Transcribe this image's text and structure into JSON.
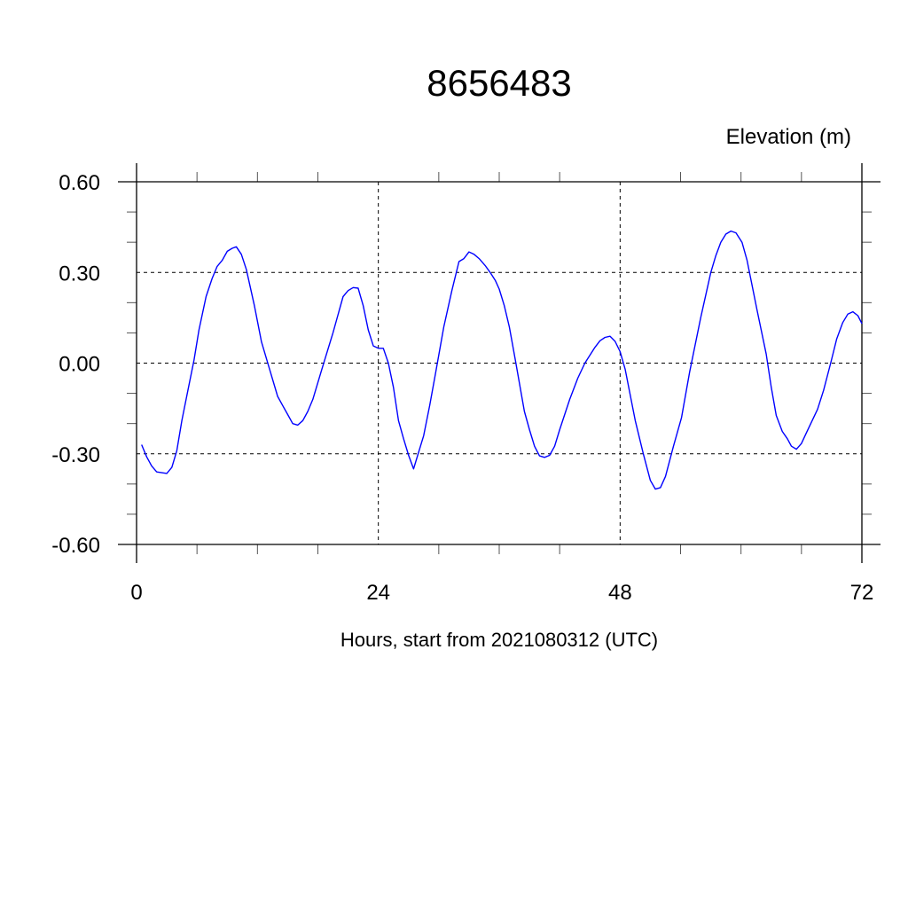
{
  "chart_data": {
    "type": "line",
    "title": "8656483",
    "ylabel": "Elevation (m)",
    "xlabel": "Hours, start from 2021080312 (UTC)",
    "xlim": [
      0,
      72
    ],
    "ylim": [
      -0.6,
      0.6
    ],
    "x_ticks": [
      0,
      24,
      48,
      72
    ],
    "x_tick_labels": [
      "0",
      "24",
      "48",
      "72"
    ],
    "x_minor_step": 6,
    "y_ticks": [
      -0.6,
      -0.3,
      0.0,
      0.3,
      0.6
    ],
    "y_tick_labels": [
      "-0.60",
      "-0.30",
      "0.00",
      "0.30",
      "0.60"
    ],
    "y_minor_step": 0.1,
    "grid": true,
    "line_color": "#0000ff",
    "series": [
      {
        "points": [
          [
            0.5,
            -0.27
          ],
          [
            1.0,
            -0.31
          ],
          [
            1.5,
            -0.34
          ],
          [
            2.0,
            -0.36
          ],
          [
            3.0,
            -0.365
          ],
          [
            3.5,
            -0.345
          ],
          [
            4.0,
            -0.29
          ],
          [
            4.5,
            -0.19
          ],
          [
            5.1,
            -0.09
          ],
          [
            5.7,
            0.01
          ],
          [
            6.2,
            0.11
          ],
          [
            6.9,
            0.22
          ],
          [
            7.5,
            0.28
          ],
          [
            8.0,
            0.32
          ],
          [
            8.5,
            0.34
          ],
          [
            9.0,
            0.37
          ],
          [
            9.5,
            0.38
          ],
          [
            9.9,
            0.385
          ],
          [
            10.4,
            0.36
          ],
          [
            10.9,
            0.31
          ],
          [
            11.7,
            0.19
          ],
          [
            12.4,
            0.07
          ],
          [
            13.2,
            -0.02
          ],
          [
            14.0,
            -0.11
          ],
          [
            14.5,
            -0.14
          ],
          [
            15.0,
            -0.17
          ],
          [
            15.5,
            -0.2
          ],
          [
            16.0,
            -0.205
          ],
          [
            16.5,
            -0.19
          ],
          [
            17.0,
            -0.16
          ],
          [
            17.5,
            -0.12
          ],
          [
            18.4,
            -0.02
          ],
          [
            19.5,
            0.1
          ],
          [
            20.5,
            0.22
          ],
          [
            21.0,
            0.24
          ],
          [
            21.5,
            0.25
          ],
          [
            22.0,
            0.248
          ],
          [
            22.5,
            0.19
          ],
          [
            23.0,
            0.11
          ],
          [
            23.5,
            0.057
          ],
          [
            24.0,
            0.049
          ],
          [
            24.5,
            0.049
          ],
          [
            25.0,
            0.0
          ],
          [
            25.5,
            -0.08
          ],
          [
            26.0,
            -0.19
          ],
          [
            26.5,
            -0.25
          ],
          [
            27.0,
            -0.305
          ],
          [
            27.5,
            -0.35
          ],
          [
            28.0,
            -0.295
          ],
          [
            28.5,
            -0.24
          ],
          [
            29.1,
            -0.14
          ],
          [
            29.7,
            -0.03
          ],
          [
            30.5,
            0.12
          ],
          [
            31.3,
            0.24
          ],
          [
            32.0,
            0.336
          ],
          [
            32.5,
            0.346
          ],
          [
            33.0,
            0.368
          ],
          [
            33.5,
            0.36
          ],
          [
            34.0,
            0.346
          ],
          [
            34.6,
            0.323
          ],
          [
            35.1,
            0.3
          ],
          [
            35.6,
            0.274
          ],
          [
            36.0,
            0.245
          ],
          [
            36.5,
            0.19
          ],
          [
            37.0,
            0.12
          ],
          [
            37.6,
            0.01
          ],
          [
            38.5,
            -0.16
          ],
          [
            39.0,
            -0.22
          ],
          [
            39.5,
            -0.275
          ],
          [
            40.0,
            -0.307
          ],
          [
            40.5,
            -0.312
          ],
          [
            41.0,
            -0.305
          ],
          [
            41.5,
            -0.275
          ],
          [
            42.0,
            -0.22
          ],
          [
            43.0,
            -0.12
          ],
          [
            43.8,
            -0.05
          ],
          [
            44.5,
            0.0
          ],
          [
            45.5,
            0.052
          ],
          [
            46.0,
            0.074
          ],
          [
            46.5,
            0.085
          ],
          [
            47.0,
            0.089
          ],
          [
            47.5,
            0.072
          ],
          [
            48.0,
            0.038
          ],
          [
            48.5,
            -0.02
          ],
          [
            49.5,
            -0.19
          ],
          [
            50.3,
            -0.3
          ],
          [
            51.0,
            -0.388
          ],
          [
            51.5,
            -0.417
          ],
          [
            52.0,
            -0.412
          ],
          [
            52.5,
            -0.375
          ],
          [
            53.3,
            -0.275
          ],
          [
            54.1,
            -0.18
          ],
          [
            54.9,
            -0.03
          ],
          [
            56.0,
            0.15
          ],
          [
            57.0,
            0.3
          ],
          [
            57.5,
            0.356
          ],
          [
            58.0,
            0.4
          ],
          [
            58.5,
            0.427
          ],
          [
            59.0,
            0.437
          ],
          [
            59.5,
            0.431
          ],
          [
            60.1,
            0.4
          ],
          [
            60.6,
            0.34
          ],
          [
            61.6,
            0.175
          ],
          [
            62.5,
            0.03
          ],
          [
            63.0,
            -0.08
          ],
          [
            63.5,
            -0.173
          ],
          [
            64.1,
            -0.226
          ],
          [
            64.6,
            -0.25
          ],
          [
            65.0,
            -0.275
          ],
          [
            65.5,
            -0.285
          ],
          [
            66.0,
            -0.266
          ],
          [
            66.5,
            -0.23
          ],
          [
            67.6,
            -0.153
          ],
          [
            68.2,
            -0.09
          ],
          [
            68.9,
            0.0
          ],
          [
            69.5,
            0.08
          ],
          [
            70.1,
            0.134
          ],
          [
            70.6,
            0.162
          ],
          [
            71.1,
            0.17
          ],
          [
            71.6,
            0.157
          ],
          [
            72.0,
            0.131
          ]
        ]
      }
    ]
  }
}
